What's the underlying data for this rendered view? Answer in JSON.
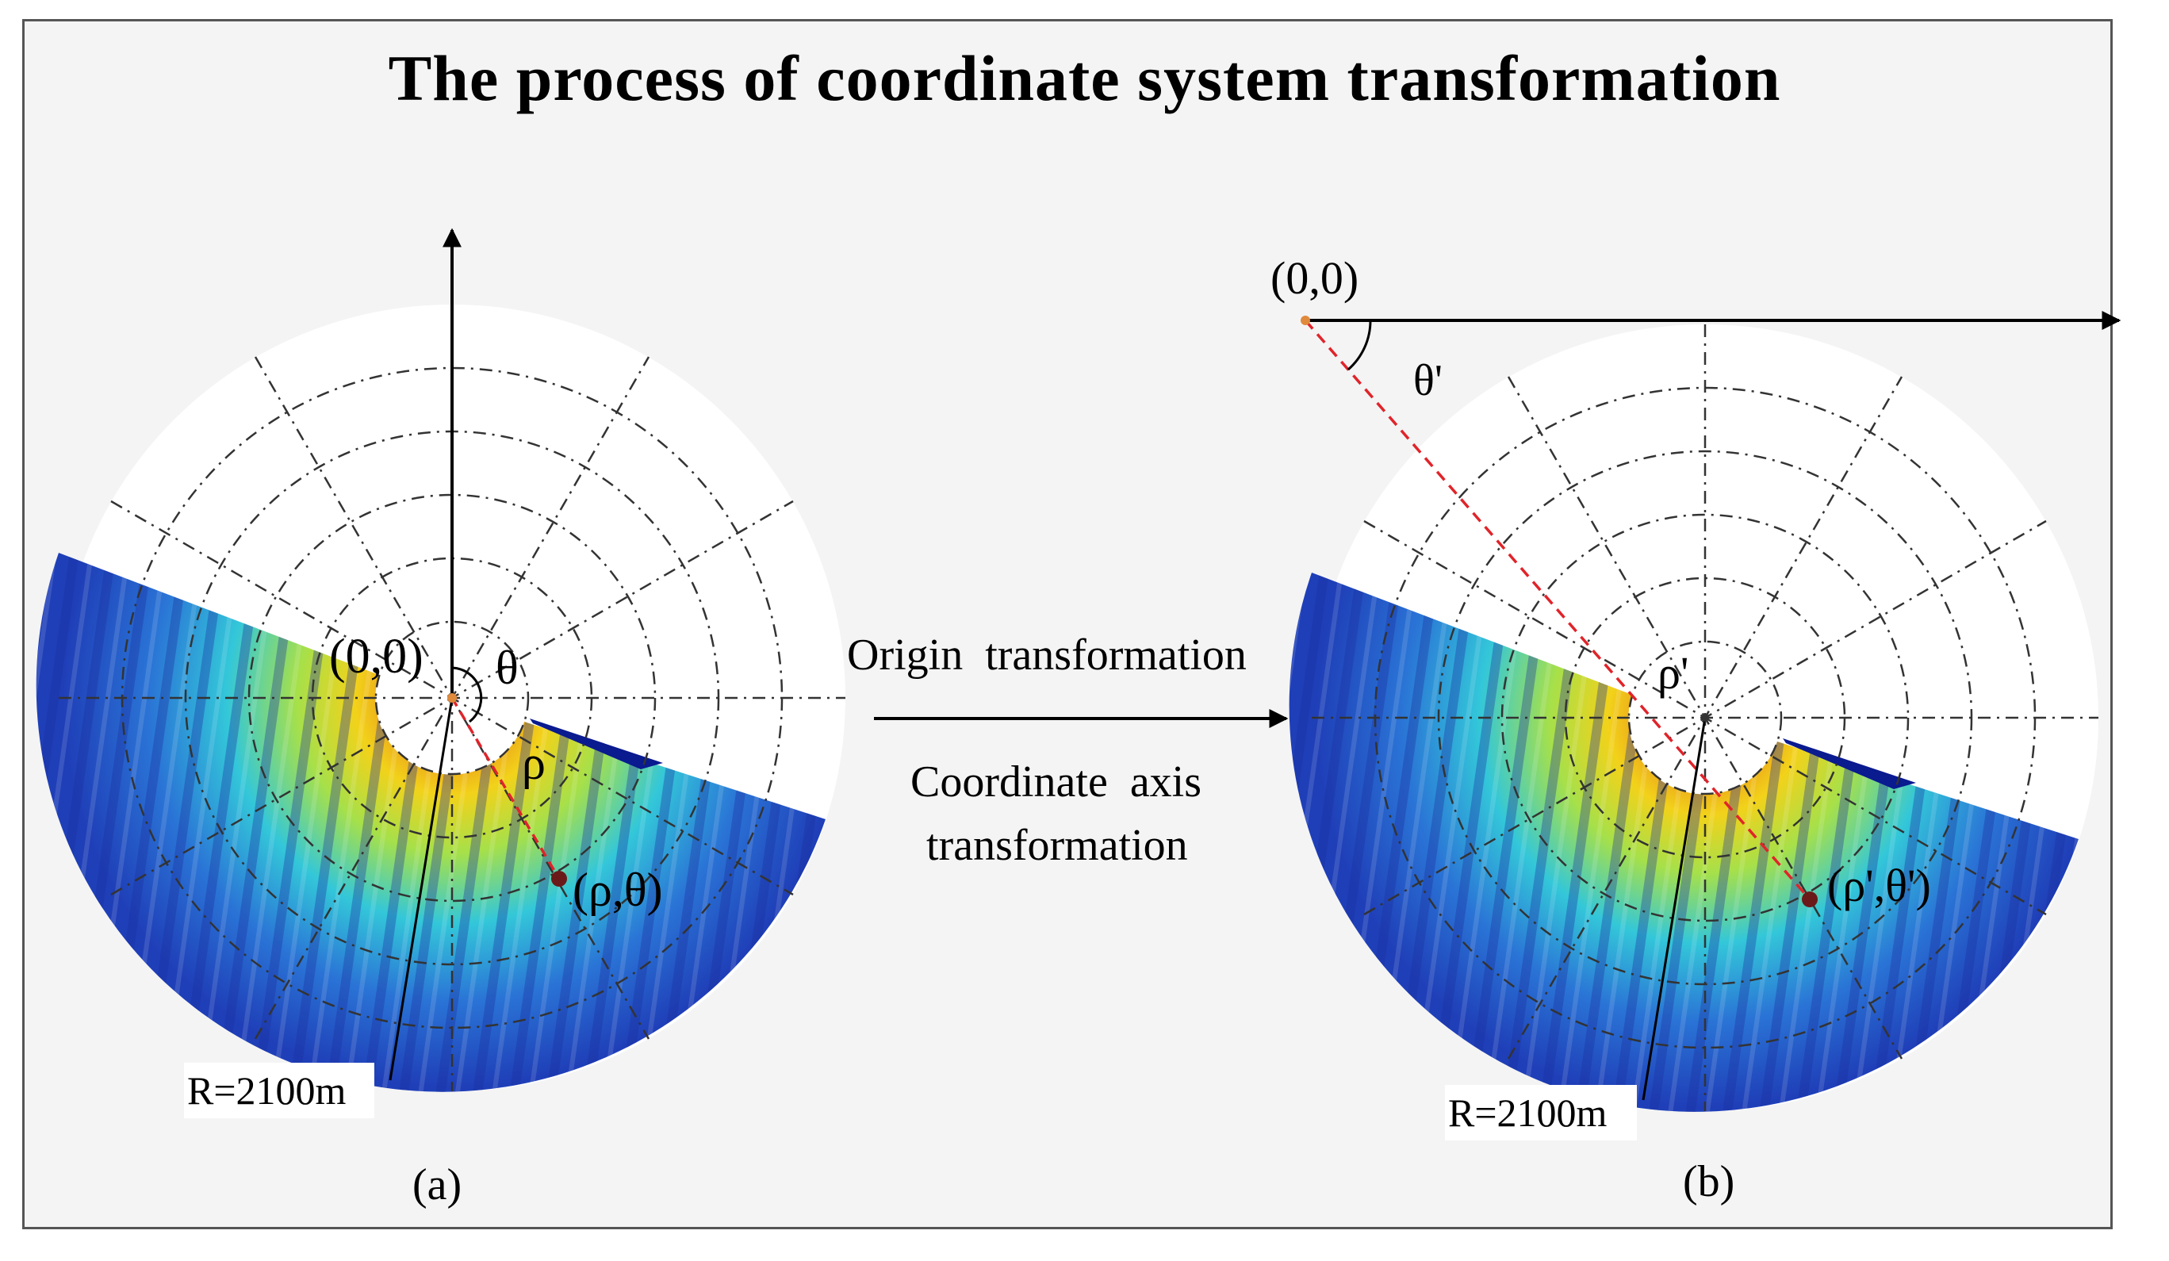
{
  "title": "The process of coordinate system transformation",
  "colors": {
    "frame_bg": "#f4f4f4",
    "grid": "#333333",
    "sonar_low": "#1f3fb8",
    "sonar_mid": "#33c7d9",
    "sonar_high": "#f2d21a",
    "sonar_peak": "#e04a1a",
    "dashed_ray": "#e0242a",
    "origin_point": "#e08a3c",
    "target_point": "#6b1a1a"
  },
  "panel_a": {
    "caption": "(a)",
    "origin_label": "(0,0)",
    "angle_label": "θ",
    "radius_label": "ρ",
    "point_label": "(ρ,θ)",
    "range_label": "R=2100m"
  },
  "panel_b": {
    "caption": "(b)",
    "origin_label": "(0,0)",
    "angle_label": "θ'",
    "radius_label": "ρ'",
    "point_label": "(ρ',θ')",
    "range_label": "R=2100m"
  },
  "transform": {
    "label_top": "Origin  transformation",
    "label_bottom_1": "Coordinate  axis",
    "label_bottom_2": "transformation"
  }
}
